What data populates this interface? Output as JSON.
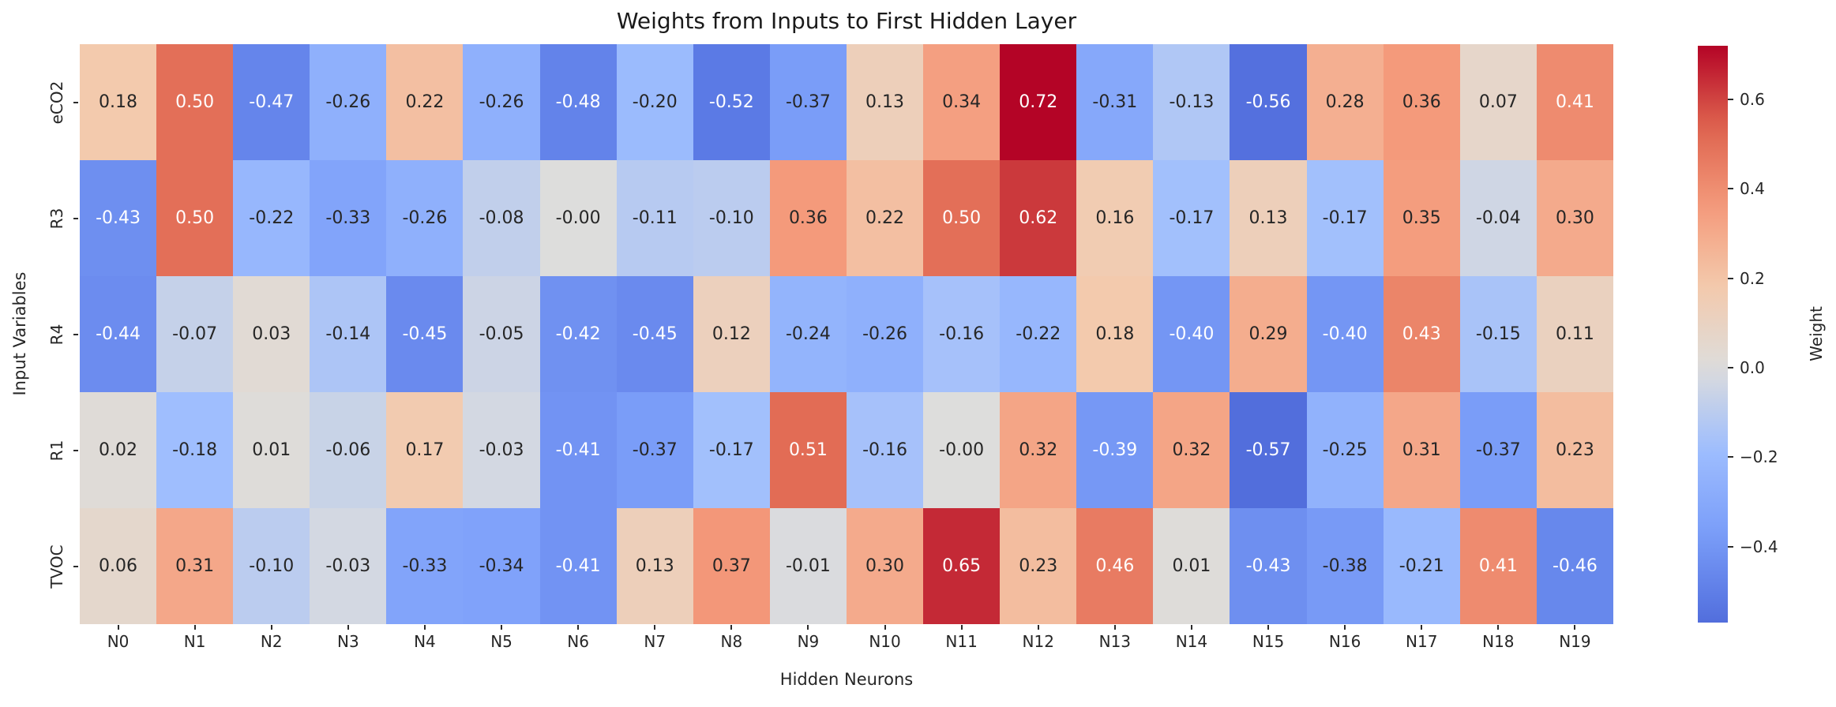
{
  "chart_data": {
    "type": "heatmap",
    "title": "Weights from Inputs to First Hidden Layer",
    "xlabel": "Hidden Neurons",
    "ylabel": "Input Variables",
    "colorbar_label": "Weight",
    "colormap": "coolwarm",
    "center": 0,
    "vmin": -0.57,
    "vmax": 0.72,
    "legend_position": "right-colorbar",
    "grid": false,
    "columns": [
      "N0",
      "N1",
      "N2",
      "N3",
      "N4",
      "N5",
      "N6",
      "N7",
      "N8",
      "N9",
      "N10",
      "N11",
      "N12",
      "N13",
      "N14",
      "N15",
      "N16",
      "N17",
      "N18",
      "N19"
    ],
    "rows": [
      "eCO2",
      "R3",
      "R4",
      "R1",
      "TVOC"
    ],
    "values": [
      [
        "0.18",
        "0.50",
        "-0.47",
        "-0.26",
        "0.22",
        "-0.26",
        "-0.48",
        "-0.20",
        "-0.52",
        "-0.37",
        "0.13",
        "0.34",
        "0.72",
        "-0.31",
        "-0.13",
        "-0.56",
        "0.28",
        "0.36",
        "0.07",
        "0.41"
      ],
      [
        "-0.43",
        "0.50",
        "-0.22",
        "-0.33",
        "-0.26",
        "-0.08",
        "-0.00",
        "-0.11",
        "-0.10",
        "0.36",
        "0.22",
        "0.50",
        "0.62",
        "0.16",
        "-0.17",
        "0.13",
        "-0.17",
        "0.35",
        "-0.04",
        "0.30"
      ],
      [
        "-0.44",
        "-0.07",
        "0.03",
        "-0.14",
        "-0.45",
        "-0.05",
        "-0.42",
        "-0.45",
        "0.12",
        "-0.24",
        "-0.26",
        "-0.16",
        "-0.22",
        "0.18",
        "-0.40",
        "0.29",
        "-0.40",
        "0.43",
        "-0.15",
        "0.11"
      ],
      [
        "0.02",
        "-0.18",
        "0.01",
        "-0.06",
        "0.17",
        "-0.03",
        "-0.41",
        "-0.37",
        "-0.17",
        "0.51",
        "-0.16",
        "-0.00",
        "0.32",
        "-0.39",
        "0.32",
        "-0.57",
        "-0.25",
        "0.31",
        "-0.37",
        "0.23"
      ],
      [
        "0.06",
        "0.31",
        "-0.10",
        "-0.03",
        "-0.33",
        "-0.34",
        "-0.41",
        "0.13",
        "0.37",
        "-0.01",
        "0.30",
        "0.65",
        "0.23",
        "0.46",
        "0.01",
        "-0.43",
        "-0.38",
        "-0.21",
        "0.41",
        "-0.46"
      ]
    ],
    "colorbar_ticks": [
      "0.6",
      "0.4",
      "0.2",
      "0.0",
      "−0.2",
      "−0.4"
    ],
    "annotation_text_colors": {
      "dark": "#262626",
      "light": "#ffffff"
    }
  }
}
